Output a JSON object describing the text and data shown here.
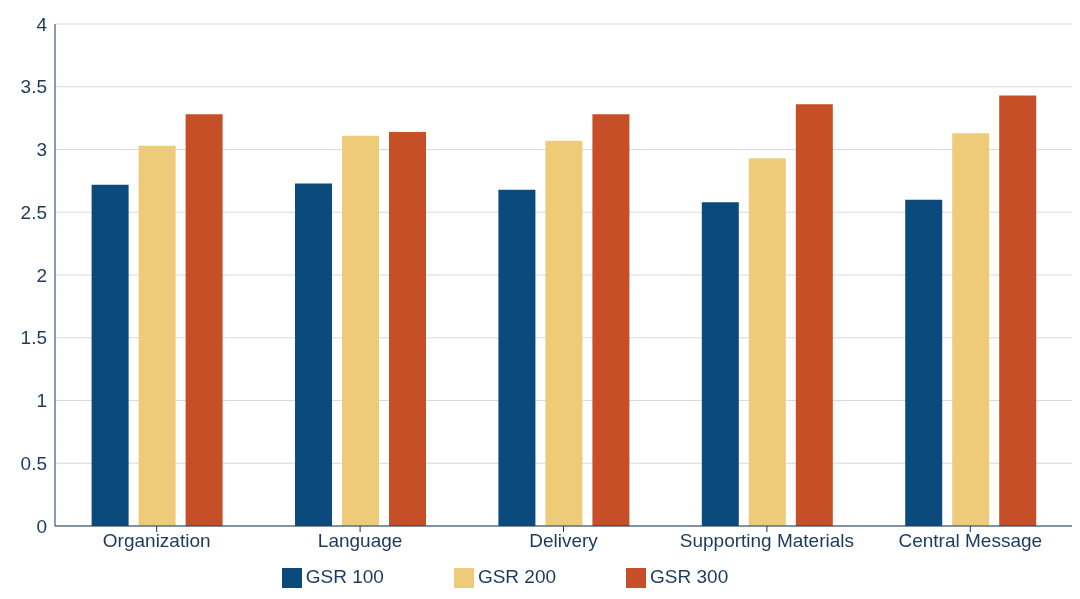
{
  "chart_data": {
    "type": "bar",
    "categories": [
      "Organization",
      "Language",
      "Delivery",
      "Supporting Materials",
      "Central Message"
    ],
    "series": [
      {
        "name": "GSR 100",
        "color": "#0b4a7d",
        "values": [
          2.72,
          2.73,
          2.68,
          2.58,
          2.6
        ]
      },
      {
        "name": "GSR 200",
        "color": "#eecb78",
        "values": [
          3.03,
          3.11,
          3.07,
          2.93,
          3.13
        ]
      },
      {
        "name": "GSR 300",
        "color": "#c64f27",
        "values": [
          3.28,
          3.14,
          3.28,
          3.36,
          3.43
        ]
      }
    ],
    "ylim": [
      0,
      4
    ],
    "yticks": [
      0,
      0.5,
      1,
      1.5,
      2,
      2.5,
      3,
      3.5,
      4
    ],
    "grid": "y",
    "legend": "bottom"
  }
}
